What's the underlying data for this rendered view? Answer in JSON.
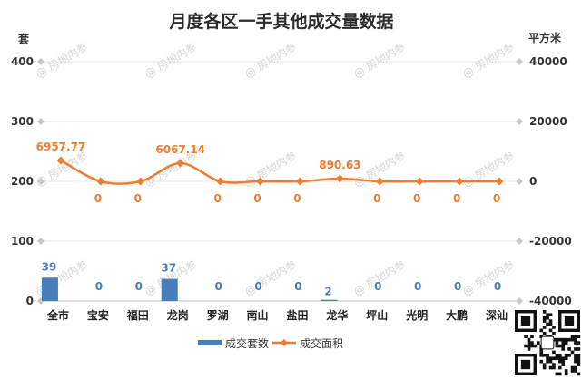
{
  "chart_data": {
    "type": "bar+line",
    "title": "月度各区一手其他成交量数据",
    "categories": [
      "全市",
      "宝安",
      "福田",
      "龙岗",
      "罗湖",
      "南山",
      "盐田",
      "龙华",
      "坪山",
      "光明",
      "大鹏",
      "深汕"
    ],
    "series": [
      {
        "name": "成交套数",
        "type": "bar",
        "axis": "left",
        "color": "#4a7ebb",
        "label_color": "#4a7ebb",
        "values": [
          39,
          0,
          0,
          37,
          0,
          0,
          0,
          2,
          0,
          0,
          0,
          0
        ],
        "labels": [
          "39",
          "0",
          "0",
          "37",
          "0",
          "0",
          "0",
          "2",
          "0",
          "0",
          "0",
          "0"
        ]
      },
      {
        "name": "成交面积",
        "type": "line",
        "axis": "right",
        "color": "#ed7d31",
        "label_color": "#ed7d31",
        "values": [
          6957.77,
          0,
          0,
          6067.14,
          0,
          0,
          0,
          890.63,
          0,
          0,
          0,
          0
        ],
        "labels": [
          "6957.77",
          "0",
          "0",
          "6067.14",
          "0",
          "0",
          "0",
          "890.63",
          "0",
          "0",
          "0",
          "0"
        ]
      }
    ],
    "left_axis": {
      "unit": "套",
      "ylim": [
        0,
        400
      ],
      "ticks": [
        "0",
        "100",
        "200",
        "300",
        "400"
      ]
    },
    "right_axis": {
      "unit": "平方米",
      "ylim": [
        -40000,
        40000
      ],
      "ticks": [
        "-40000",
        "-20000",
        "0",
        "20000",
        "40000"
      ]
    },
    "grid": true,
    "legend_position": "bottom",
    "watermark": "房地内参"
  }
}
